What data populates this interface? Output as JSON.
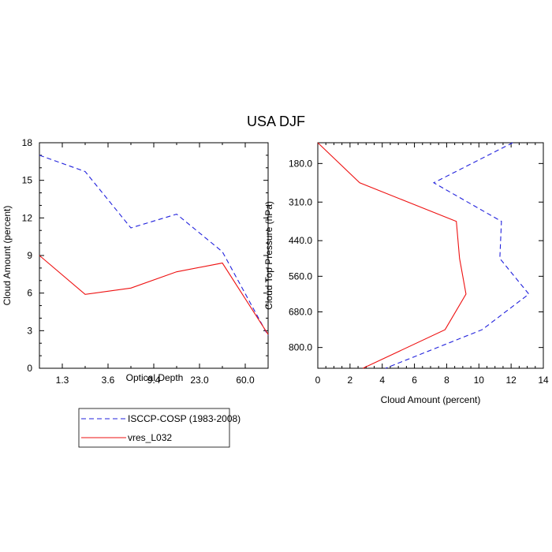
{
  "title": "USA DJF",
  "colors": {
    "isccp": "#2222dd",
    "model": "#ee1111"
  },
  "chart_data": [
    {
      "type": "line",
      "xlabel": "Optical Depth",
      "ylabel": "Cloud Amount (percent)",
      "categories": [
        "",
        "1.3",
        "",
        "3.6",
        "",
        "9.4",
        "",
        "23.0",
        "",
        "60.0",
        ""
      ],
      "xlim": [
        0,
        10
      ],
      "ylim": [
        0,
        18
      ],
      "yticks": [
        "0",
        "3",
        "6",
        "9",
        "12",
        "15",
        "18"
      ],
      "series": [
        {
          "name": "ISCCP-COSP (1983-2008)",
          "style": "dashed",
          "x": [
            0,
            2,
            4,
            6,
            8,
            10
          ],
          "values": [
            17.0,
            15.7,
            11.2,
            12.3,
            9.3,
            2.6
          ]
        },
        {
          "name": "vres_L032",
          "style": "solid",
          "x": [
            0,
            2,
            4,
            6,
            8,
            10
          ],
          "values": [
            9.0,
            5.9,
            6.4,
            7.7,
            8.4,
            2.7
          ]
        }
      ]
    },
    {
      "type": "line",
      "xlabel": "Cloud Amount (percent)",
      "ylabel": "Cloud Top Pressure (hPa)",
      "xlim": [
        0,
        14
      ],
      "xticks": [
        "0",
        "2",
        "4",
        "6",
        "8",
        "10",
        "12",
        "14"
      ],
      "ylim": [
        110,
        870
      ],
      "yticks": [
        "180.0",
        "310.0",
        "440.0",
        "560.0",
        "680.0",
        "800.0"
      ],
      "ytick_values": [
        180,
        310,
        440,
        560,
        680,
        800
      ],
      "series": [
        {
          "name": "ISCCP-COSP (1983-2008)",
          "style": "dashed",
          "values": [
            12.1,
            7.2,
            11.4,
            11.3,
            13.1,
            10.2,
            4.2
          ],
          "y": [
            110,
            245,
            375,
            500,
            620,
            740,
            870
          ]
        },
        {
          "name": "vres_L032",
          "style": "solid",
          "values": [
            0.0,
            2.6,
            8.6,
            8.8,
            9.2,
            7.9,
            2.8
          ],
          "y": [
            110,
            245,
            375,
            500,
            620,
            740,
            870
          ]
        }
      ]
    }
  ],
  "legend": {
    "items": [
      {
        "label": "ISCCP-COSP (1983-2008)",
        "style": "dashed",
        "color": "#2222dd"
      },
      {
        "label": "vres_L032",
        "style": "solid",
        "color": "#ee1111"
      }
    ]
  }
}
